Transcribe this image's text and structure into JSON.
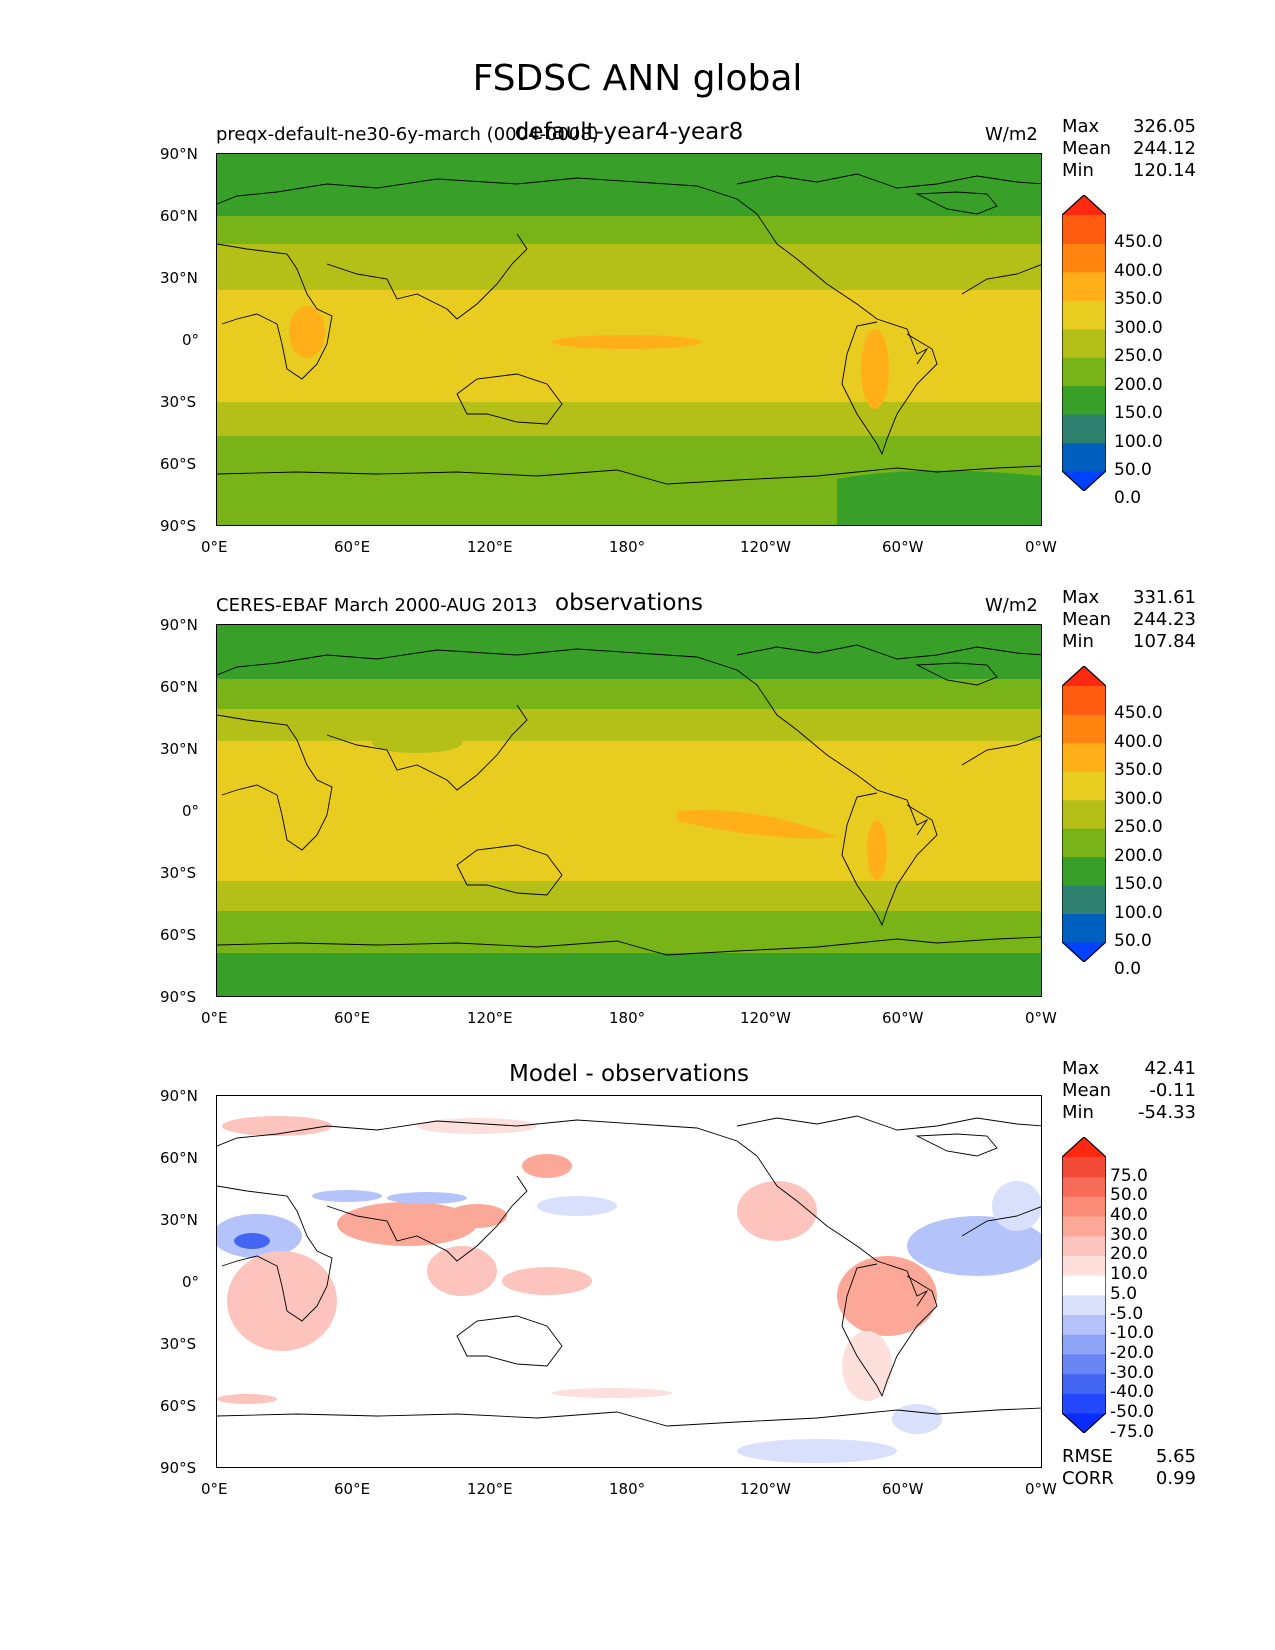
{
  "figure": {
    "title": "FSDSC ANN global"
  },
  "axes": {
    "lat_ticks": [
      "90°N",
      "60°N",
      "30°N",
      "0°",
      "30°S",
      "60°S",
      "90°S"
    ],
    "lon_ticks": [
      "0°E",
      "60°E",
      "120°E",
      "180°",
      "120°W",
      "60°W",
      "0°W"
    ]
  },
  "stat_labels": {
    "max": "Max",
    "mean": "Mean",
    "min": "Min",
    "rmse": "RMSE",
    "corr": "CORR"
  },
  "panels": [
    {
      "title": "default-year4-year8",
      "left_text": "preqx-default-ne30-6y-march (0004-0008)",
      "units": "W/m2",
      "stats": {
        "max": "326.05",
        "mean": "244.12",
        "min": "120.14"
      }
    },
    {
      "title": "observations",
      "left_text": "CERES-EBAF March 2000-AUG 2013",
      "units": "W/m2",
      "stats": {
        "max": "331.61",
        "mean": "244.23",
        "min": "107.84"
      }
    },
    {
      "title": "Model - observations",
      "left_text": "",
      "units": "",
      "stats": {
        "max": "42.41",
        "mean": "-0.11",
        "min": "-54.33",
        "rmse": "5.65",
        "corr": "0.99"
      }
    }
  ],
  "colorbars": {
    "absolute": {
      "labels": [
        "450.0",
        "400.0",
        "350.0",
        "300.0",
        "250.0",
        "200.0",
        "150.0",
        "100.0",
        "50.0",
        "0.0"
      ],
      "colors": [
        "#0040ff",
        "#0060c0",
        "#308070",
        "#38a028",
        "#78b418",
        "#b4c018",
        "#e8cc20",
        "#ffb018",
        "#ff8410",
        "#ff5c10",
        "#ff2810"
      ]
    },
    "difference": {
      "labels": [
        "75.0",
        "50.0",
        "40.0",
        "30.0",
        "20.0",
        "10.0",
        "5.0",
        "-5.0",
        "-10.0",
        "-20.0",
        "-30.0",
        "-40.0",
        "-50.0",
        "-75.0"
      ],
      "colors": [
        "#0a2cff",
        "#2448ff",
        "#4266f2",
        "#6a86f4",
        "#8ea4f6",
        "#b4c4fa",
        "#d8e0fc",
        "#ffffff",
        "#fde0dc",
        "#fcc4bc",
        "#fca898",
        "#fa8c78",
        "#f66c58",
        "#f24c38",
        "#ff2810"
      ]
    }
  },
  "chart_data": [
    {
      "type": "heatmap",
      "title": "default-year4-year8",
      "subtitle": "preqx-default-ne30-6y-march (0004-0008)",
      "units": "W/m2",
      "x_ticks": [
        "0°E",
        "60°E",
        "120°E",
        "180°",
        "120°W",
        "60°W",
        "0°W"
      ],
      "y_ticks": [
        "90°N",
        "60°N",
        "30°N",
        "0°",
        "30°S",
        "60°S",
        "90°S"
      ],
      "xlim": [
        0,
        360
      ],
      "ylim": [
        -90,
        90
      ],
      "levels": [
        0,
        50,
        100,
        150,
        200,
        250,
        300,
        350,
        400,
        450
      ],
      "zonal_bands": [
        {
          "lat": [
            65,
            90
          ],
          "value": 125
        },
        {
          "lat": [
            52,
            65
          ],
          "value": 175
        },
        {
          "lat": [
            30,
            52
          ],
          "value": 225
        },
        {
          "lat": [
            -35,
            30
          ],
          "value": 275
        },
        {
          "lat": [
            -52,
            -35
          ],
          "value": 225
        },
        {
          "lat": [
            -72,
            -52
          ],
          "value": 175
        },
        {
          "lat": [
            -90,
            -72
          ],
          "value": 175
        }
      ],
      "stats": {
        "max": 326.05,
        "mean": 244.12,
        "min": 120.14
      }
    },
    {
      "type": "heatmap",
      "title": "observations",
      "subtitle": "CERES-EBAF March 2000-AUG 2013",
      "units": "W/m2",
      "x_ticks": [
        "0°E",
        "60°E",
        "120°E",
        "180°",
        "120°W",
        "60°W",
        "0°W"
      ],
      "y_ticks": [
        "90°N",
        "60°N",
        "30°N",
        "0°",
        "30°S",
        "60°S",
        "90°S"
      ],
      "xlim": [
        0,
        360
      ],
      "ylim": [
        -90,
        90
      ],
      "levels": [
        0,
        50,
        100,
        150,
        200,
        250,
        300,
        350,
        400,
        450
      ],
      "zonal_bands": [
        {
          "lat": [
            65,
            90
          ],
          "value": 125
        },
        {
          "lat": [
            52,
            65
          ],
          "value": 175
        },
        {
          "lat": [
            30,
            52
          ],
          "value": 225
        },
        {
          "lat": [
            -35,
            30
          ],
          "value": 275
        },
        {
          "lat": [
            -52,
            -35
          ],
          "value": 225
        },
        {
          "lat": [
            -72,
            -52
          ],
          "value": 175
        },
        {
          "lat": [
            -90,
            -72
          ],
          "value": 125
        }
      ],
      "stats": {
        "max": 331.61,
        "mean": 244.23,
        "min": 107.84
      }
    },
    {
      "type": "heatmap",
      "title": "Model - observations",
      "x_ticks": [
        "0°E",
        "60°E",
        "120°E",
        "180°",
        "120°W",
        "60°W",
        "0°W"
      ],
      "y_ticks": [
        "90°N",
        "60°N",
        "30°N",
        "0°",
        "30°S",
        "60°S",
        "90°S"
      ],
      "xlim": [
        0,
        360
      ],
      "ylim": [
        -90,
        90
      ],
      "levels": [
        -75,
        -50,
        -40,
        -30,
        -20,
        -10,
        -5,
        5,
        10,
        20,
        30,
        40,
        50,
        75
      ],
      "stats": {
        "max": 42.41,
        "mean": -0.11,
        "min": -54.33,
        "rmse": 5.65,
        "corr": 0.99
      }
    }
  ]
}
